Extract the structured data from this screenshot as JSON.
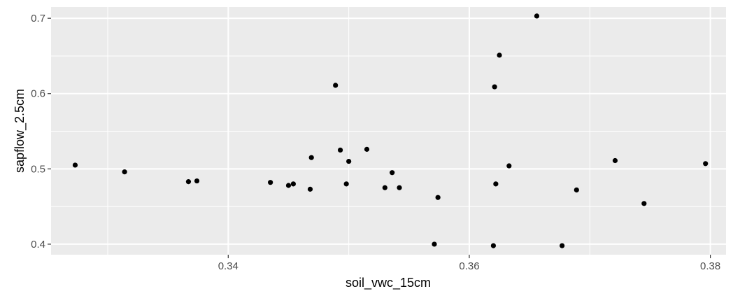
{
  "chart_data": {
    "type": "scatter",
    "xlabel": "soil_vwc_15cm",
    "ylabel": "sapflow_2.5cm",
    "xlim": [
      0.3253,
      0.3813
    ],
    "ylim": [
      0.386,
      0.715
    ],
    "x_ticks": [
      0.34,
      0.36,
      0.38
    ],
    "x_tick_labels": [
      "0.34",
      "0.36",
      "0.38"
    ],
    "y_ticks": [
      0.4,
      0.5,
      0.6,
      0.7
    ],
    "y_tick_labels": [
      "0.4",
      "0.5",
      "0.6",
      "0.7"
    ],
    "grid": true,
    "colors": {
      "panel": "#ebebeb",
      "grid": "#ffffff",
      "point": "#000000"
    },
    "points": [
      {
        "x": 0.3273,
        "y": 0.505
      },
      {
        "x": 0.3314,
        "y": 0.496
      },
      {
        "x": 0.3367,
        "y": 0.483
      },
      {
        "x": 0.3374,
        "y": 0.484
      },
      {
        "x": 0.3435,
        "y": 0.482
      },
      {
        "x": 0.345,
        "y": 0.478
      },
      {
        "x": 0.3454,
        "y": 0.48
      },
      {
        "x": 0.3468,
        "y": 0.473
      },
      {
        "x": 0.3469,
        "y": 0.515
      },
      {
        "x": 0.3489,
        "y": 0.611
      },
      {
        "x": 0.3493,
        "y": 0.525
      },
      {
        "x": 0.3498,
        "y": 0.48
      },
      {
        "x": 0.35,
        "y": 0.51
      },
      {
        "x": 0.3515,
        "y": 0.526
      },
      {
        "x": 0.353,
        "y": 0.475
      },
      {
        "x": 0.3536,
        "y": 0.495
      },
      {
        "x": 0.3542,
        "y": 0.475
      },
      {
        "x": 0.3571,
        "y": 0.4
      },
      {
        "x": 0.3574,
        "y": 0.462
      },
      {
        "x": 0.362,
        "y": 0.398
      },
      {
        "x": 0.3621,
        "y": 0.609
      },
      {
        "x": 0.3622,
        "y": 0.48
      },
      {
        "x": 0.3625,
        "y": 0.651
      },
      {
        "x": 0.3633,
        "y": 0.504
      },
      {
        "x": 0.3656,
        "y": 0.703
      },
      {
        "x": 0.3677,
        "y": 0.398
      },
      {
        "x": 0.3689,
        "y": 0.472
      },
      {
        "x": 0.3721,
        "y": 0.511
      },
      {
        "x": 0.3745,
        "y": 0.454
      },
      {
        "x": 0.3796,
        "y": 0.507
      }
    ]
  }
}
